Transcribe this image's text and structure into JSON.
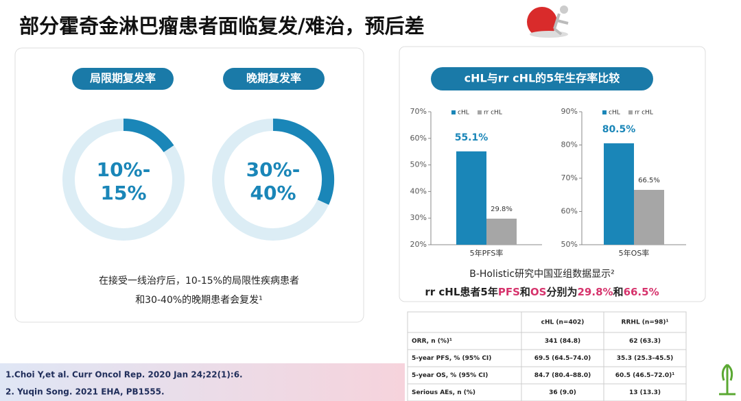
{
  "header": {
    "title": "部分霍奇金淋巴瘤患者面临复发/难治，预后差"
  },
  "left_panel": {
    "pills": [
      "局限期复发率",
      "晚期复发率"
    ],
    "donuts": [
      {
        "lines": [
          "10%-",
          "15%"
        ]
      },
      {
        "lines": [
          "30%-",
          "40%"
        ]
      }
    ],
    "note": [
      "在接受一线治疗后，10-15%的局限性疾病患者",
      "和30-40%的晚期患者会复发¹"
    ]
  },
  "references": [
    "1.Choi Y,et al. Curr Oncol Rep. 2020 Jan 24;22(1):6.",
    "2. Yuqin Song. 2021 EHA, PB1555."
  ],
  "right_panel": {
    "pill": "cHL与rr cHL的5年生存率比较",
    "summary": [
      "B-Holistic研究中国亚组数据显示²"
    ],
    "summary_parts": [
      {
        "text": "rr cHL患者5年",
        "color": "#222222"
      },
      {
        "text": "PFS",
        "color": "#d6336c"
      },
      {
        "text": "和",
        "color": "#222222"
      },
      {
        "text": "OS",
        "color": "#d6336c"
      },
      {
        "text": "分别为",
        "color": "#222222"
      },
      {
        "text": "29.8%",
        "color": "#d6336c"
      },
      {
        "text": "和",
        "color": "#222222"
      },
      {
        "text": "66.5%",
        "color": "#d6336c"
      }
    ]
  },
  "chart_data": [
    {
      "type": "bar",
      "categories": [
        "5年PFS率"
      ],
      "series": [
        {
          "name": "cHL",
          "color": "#1a86b8",
          "values": [
            55.1
          ],
          "value_labels": [
            "55.1%"
          ]
        },
        {
          "name": "rr cHL",
          "color": "#a6a6a6",
          "values": [
            29.8
          ],
          "value_labels": [
            "29.8%"
          ]
        }
      ],
      "ylim": [
        20,
        70
      ],
      "yticks": [
        {
          "value": 20,
          "label": "20%"
        },
        {
          "value": 30,
          "label": "30%"
        },
        {
          "value": 40,
          "label": "40%"
        },
        {
          "value": 50,
          "label": "50%"
        },
        {
          "value": 60,
          "label": "60%"
        },
        {
          "value": 70,
          "label": "70%"
        }
      ]
    },
    {
      "type": "bar",
      "categories": [
        "5年OS率"
      ],
      "series": [
        {
          "name": "cHL",
          "color": "#1a86b8",
          "values": [
            80.5
          ],
          "value_labels": [
            "80.5%"
          ]
        },
        {
          "name": "rr cHL",
          "color": "#a6a6a6",
          "values": [
            66.5
          ],
          "value_labels": [
            "66.5%"
          ]
        }
      ],
      "ylim": [
        50,
        90
      ],
      "yticks": [
        {
          "value": 50,
          "label": "50%"
        },
        {
          "value": 60,
          "label": "60%"
        },
        {
          "value": 70,
          "label": "70%"
        },
        {
          "value": 80,
          "label": "80%"
        },
        {
          "value": 90,
          "label": "90%"
        }
      ]
    }
  ],
  "table": {
    "header": [
      "",
      "cHL (n=402)",
      "RRHL (n=98)¹"
    ],
    "rows": [
      [
        "ORR, n (%)¹",
        "341 (84.8)",
        "62 (63.3)"
      ],
      [
        "5-year PFS, % (95% CI)",
        "69.5 (64.5–74.0)",
        "35.3 (25.3–45.5)"
      ],
      [
        "5-year OS, % (95% CI)",
        "84.7 (80.4–88.0)",
        "60.5 (46.5–72.0)¹"
      ],
      [
        "Serious AEs, n (%)",
        "36 (9.0)",
        "13 (13.3)"
      ]
    ]
  }
}
